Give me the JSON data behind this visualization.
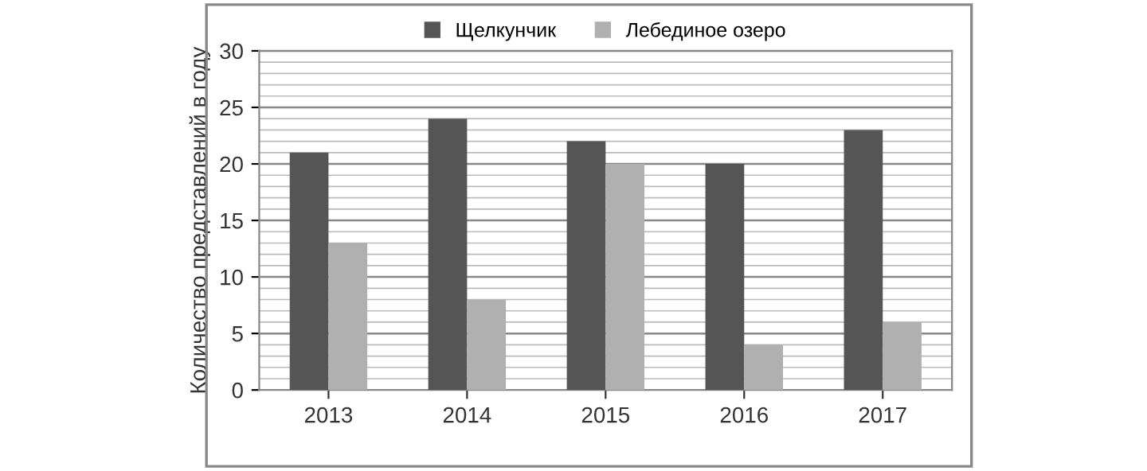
{
  "chart_data": {
    "type": "bar",
    "ylabel": "Количество представлений в году",
    "categories": [
      "2013",
      "2014",
      "2015",
      "2016",
      "2017"
    ],
    "series": [
      {
        "name": "Щелкунчик",
        "color": "#555555",
        "values": [
          21,
          24,
          22,
          20,
          23
        ]
      },
      {
        "name": "Лебединое озеро",
        "color": "#b0b0b0",
        "values": [
          13,
          8,
          20,
          4,
          6
        ]
      }
    ],
    "ylim": [
      0,
      30
    ],
    "yticks": [
      0,
      5,
      10,
      15,
      20,
      25,
      30
    ],
    "grid": "y",
    "legend": "top"
  }
}
